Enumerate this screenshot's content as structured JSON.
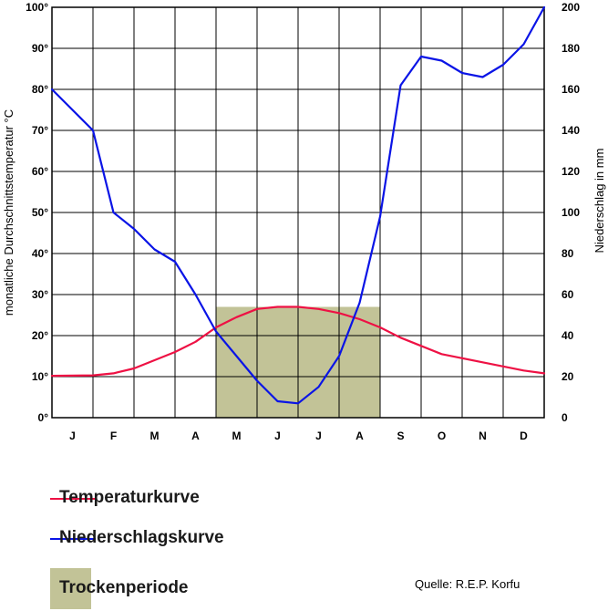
{
  "chart_data": {
    "type": "line",
    "categories": [
      "J",
      "F",
      "M",
      "A",
      "M",
      "J",
      "J",
      "A",
      "S",
      "O",
      "N",
      "D"
    ],
    "y_left": {
      "label": "monatliche Durchschnittstemperatur °C",
      "ticks": [
        "0°",
        "10°",
        "20°",
        "30°",
        "40°",
        "50°",
        "60°",
        "70°",
        "80°",
        "90°",
        "100°"
      ],
      "ylim": [
        0,
        100
      ]
    },
    "y_right": {
      "label": "Niederschlag in mm",
      "ticks": [
        "0",
        "20",
        "40",
        "60",
        "80",
        "100",
        "120",
        "140",
        "160",
        "180",
        "200"
      ],
      "ylim": [
        0,
        200
      ]
    },
    "grid": true,
    "series": [
      {
        "name": "Temperaturkurve",
        "axis": "left",
        "color": "#ee1144",
        "x": [
          0,
          1,
          1.5,
          2,
          2.5,
          3,
          3.5,
          4,
          4.5,
          5,
          5.5,
          6,
          6.5,
          7,
          7.5,
          8,
          8.5,
          9,
          9.5,
          10,
          10.5,
          11,
          11.5,
          12
        ],
        "values": [
          10.2,
          10.3,
          10.8,
          12,
          14,
          16,
          18.5,
          22,
          24.5,
          26.5,
          27,
          27,
          26.5,
          25.5,
          24,
          22,
          19.5,
          17.5,
          15.5,
          14.5,
          13.5,
          12.5,
          11.5,
          10.8
        ]
      },
      {
        "name": "Niederschlagskurve",
        "axis": "right",
        "color": "#0a14e6",
        "x": [
          0,
          0.5,
          1,
          1.5,
          2,
          2.5,
          3,
          3.5,
          4,
          4.5,
          5,
          5.5,
          6,
          6.5,
          7,
          7.5,
          8,
          8.5,
          9,
          9.5,
          10,
          10.5,
          11,
          11.5,
          12
        ],
        "values": [
          160,
          150,
          140,
          100,
          92,
          82,
          76,
          60,
          42,
          30,
          18,
          8,
          7,
          15,
          30,
          56,
          98,
          162,
          176,
          174,
          168,
          166,
          172,
          182,
          200
        ]
      }
    ],
    "dry_period": {
      "name": "Trockenperiode",
      "x_start": 4,
      "x_end": 8,
      "color": "#c2c397"
    }
  },
  "legend": {
    "temperature": "Temperaturkurve",
    "precipitation": "Niederschlagskurve",
    "dry_period": "Trockenperiode"
  },
  "source": "Quelle: R.E.P. Korfu"
}
